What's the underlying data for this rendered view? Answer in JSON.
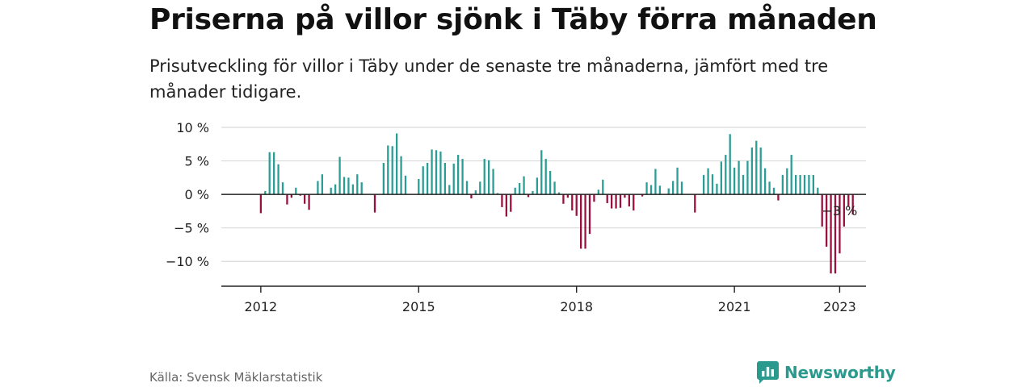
{
  "title": "Priserna på villor sjönk i Täby förra månaden",
  "subtitle": "Prisutveckling för villor i Täby under de senaste tre månaderna, jämfört med tre månader tidigare.",
  "source": "Källa: Svensk Mäklarstatistik",
  "brand": {
    "name": "Newsworthy",
    "icon": "newsworthy-chart-icon",
    "color": "#2b9a8e"
  },
  "colors": {
    "positive": "#2a9d94",
    "negative": "#99103f",
    "grid": "#d9d9d9",
    "axis": "#222222"
  },
  "chart_data": {
    "type": "bar",
    "title": "Priserna på villor sjönk i Täby förra månaden",
    "xlabel": "",
    "ylabel": "",
    "x_start": "2012-01",
    "x_end": "2023-01",
    "xlim": [
      "2011-04",
      "2023-07"
    ],
    "ylim": [
      -13.7,
      10
    ],
    "y_ticks": [
      10,
      5,
      0,
      -5,
      -10
    ],
    "y_tick_labels": [
      "10 %",
      "5 %",
      "0 %",
      "−5 %",
      "−10 %"
    ],
    "x_ticks": [
      "2012-01",
      "2015-01",
      "2018-01",
      "2021-01",
      "2023-01"
    ],
    "x_tick_labels": [
      "2012",
      "2015",
      "2018",
      "2021",
      "2023"
    ],
    "grid": true,
    "annotation": {
      "date": "2023-01",
      "value": -3,
      "label": "−3 %"
    },
    "series": [
      {
        "values": [
          -2.8,
          0.5,
          6.3,
          6.3,
          4.5,
          1.8,
          -1.5,
          -0.5,
          1.0,
          -0.2,
          -1.4,
          -2.3,
          0.0,
          2.0,
          3.0,
          0.0,
          1.0,
          1.5,
          5.6,
          2.6,
          2.5,
          1.5,
          3.0,
          1.8,
          0.0,
          0.0,
          -2.7,
          0.0,
          4.7,
          7.3,
          7.2,
          9.1,
          5.7,
          2.8,
          0.0,
          0.0,
          2.3,
          4.2,
          4.7,
          6.7,
          6.6,
          6.4,
          4.7,
          1.4,
          4.6,
          5.9,
          5.3,
          2.0,
          -0.6,
          0.6,
          1.9,
          5.3,
          5.1,
          3.8,
          0.2,
          -1.9,
          -3.3,
          -2.6,
          1.0,
          1.7,
          2.7,
          -0.4,
          0.5,
          2.5,
          6.6,
          5.3,
          3.5,
          1.9,
          0.3,
          -1.4,
          -0.5,
          -2.4,
          -3.2,
          -8.1,
          -8.1,
          -5.9,
          -1.1,
          0.7,
          2.2,
          -1.3,
          -2.1,
          -2.1,
          -2.0,
          -0.5,
          -1.8,
          -2.4,
          0.0,
          -0.3,
          1.8,
          1.4,
          3.8,
          1.3,
          0.0,
          0.9,
          2.0,
          4.0,
          1.9,
          0.0,
          0.0,
          -2.7,
          0.0,
          2.9,
          3.9,
          3.0,
          1.6,
          4.9,
          5.9,
          9.0,
          4.0,
          5.0,
          2.9,
          5.0,
          7.0,
          8.0,
          7.0,
          3.9,
          1.9,
          1.0,
          -0.9,
          2.9,
          3.9,
          5.9,
          2.9,
          2.9,
          2.9,
          2.9,
          2.9,
          1.0,
          -4.8,
          -7.8,
          -11.8,
          -11.8,
          -8.8,
          -4.8,
          -1.8,
          -3.0
        ]
      }
    ]
  }
}
